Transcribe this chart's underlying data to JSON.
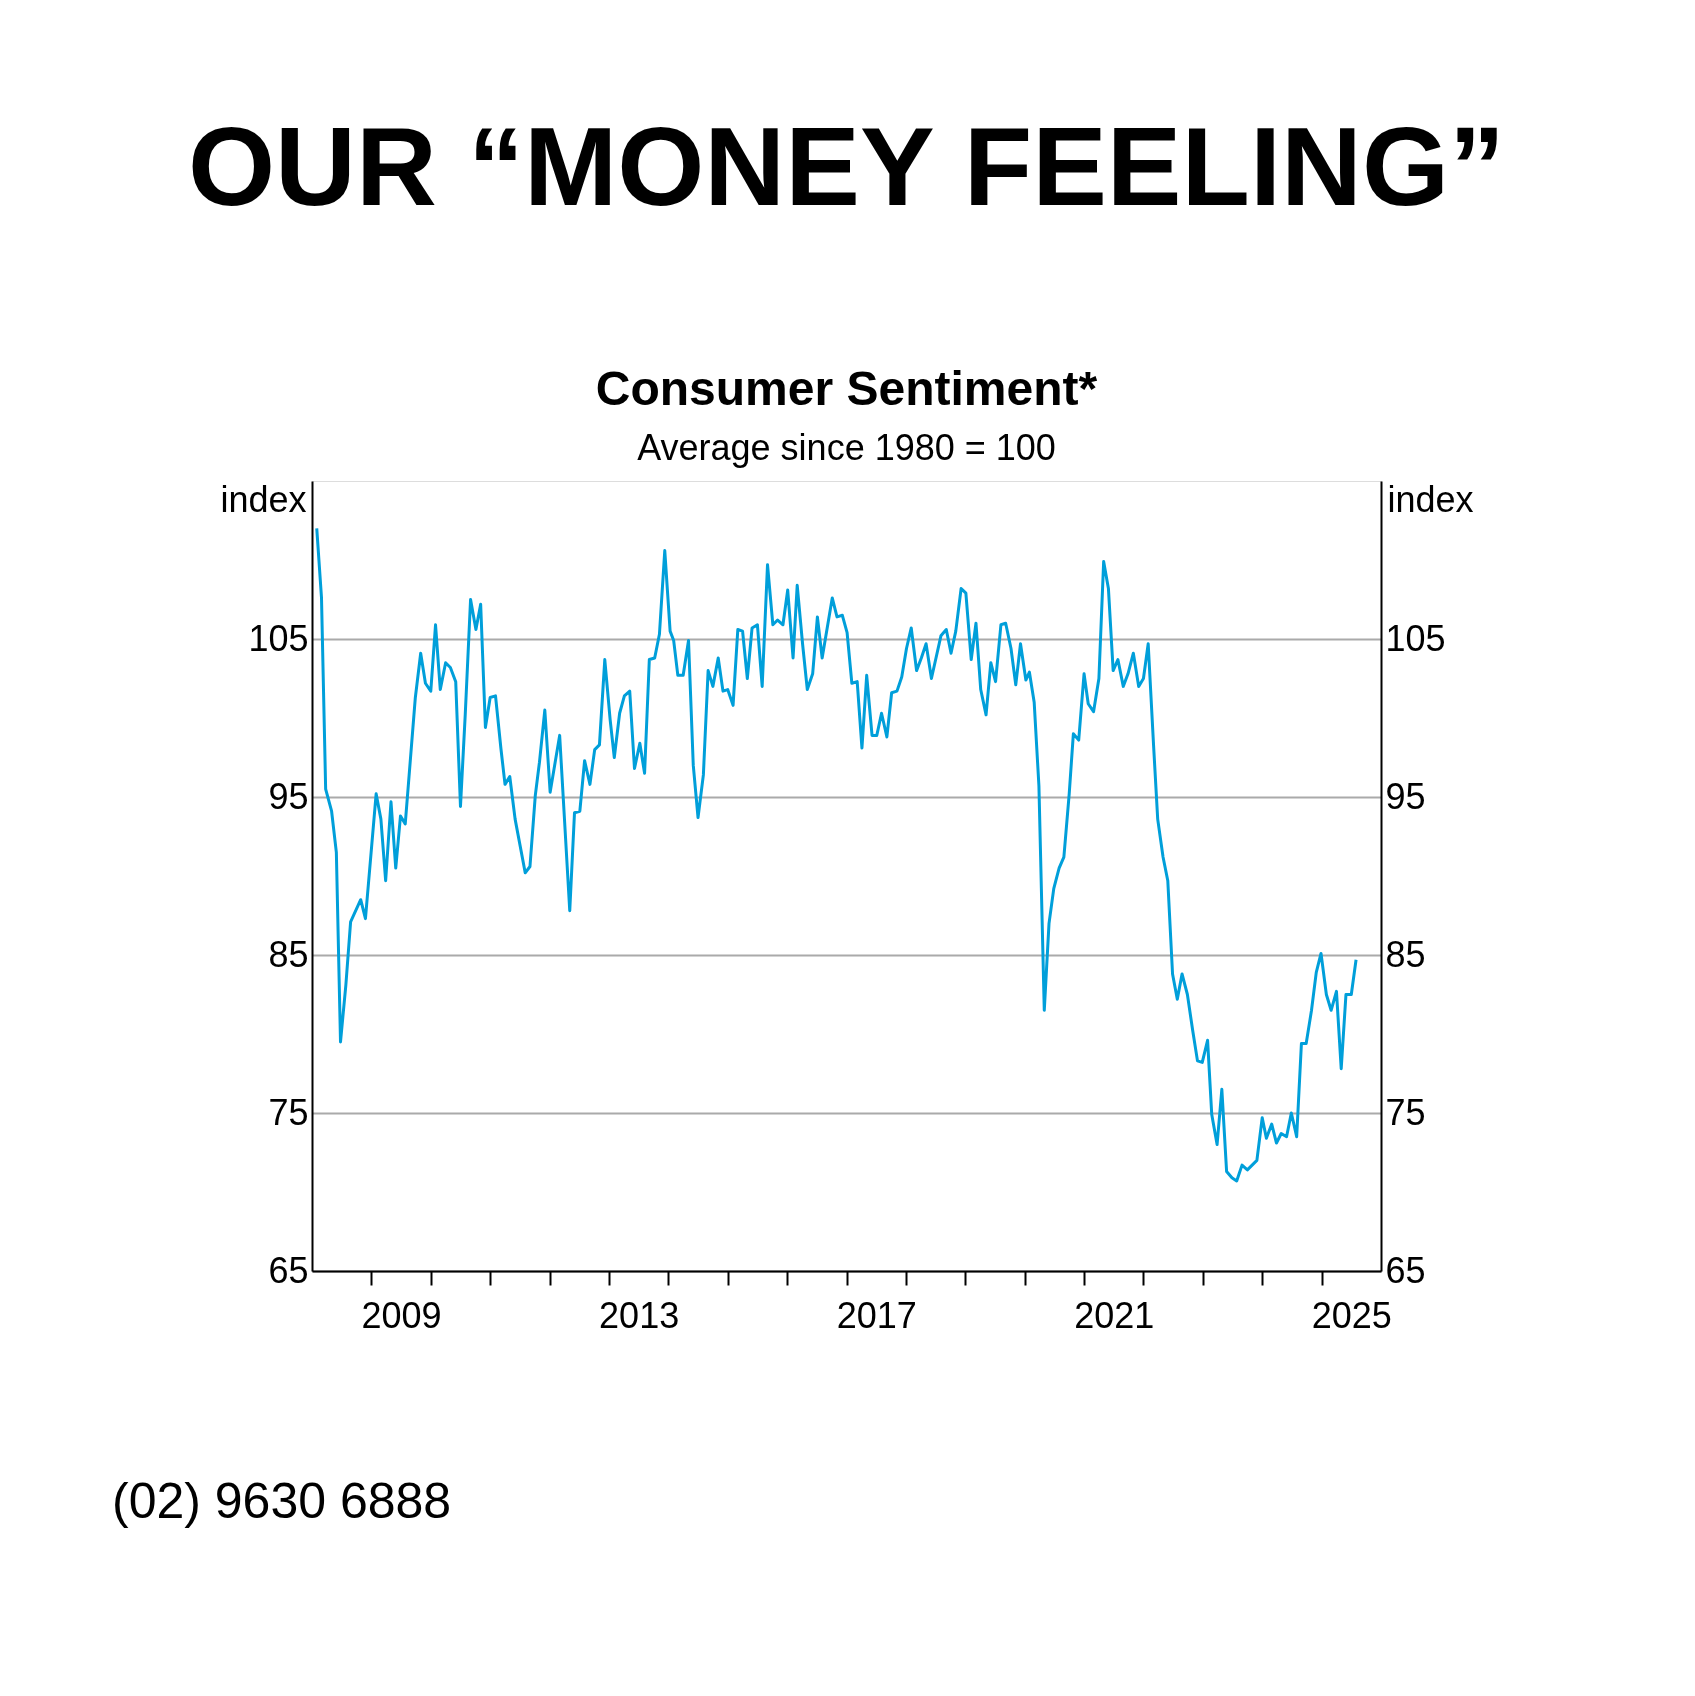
{
  "chart_data": {
    "type": "line",
    "title": "OUR “MONEY FEELING”",
    "subtitle": "Consumer Sentiment*",
    "annotations": [
      "Average since 1980 = 100",
      "(02) 9630 6888"
    ],
    "ylabel": "index",
    "y2label": "index",
    "color": "#009fda",
    "grid": "y",
    "xlim": [
      2008,
      2026
    ],
    "ylim": [
      65,
      115
    ],
    "yticks": [
      65,
      75,
      85,
      95,
      105
    ],
    "y2lim": [
      65,
      115
    ],
    "y2ticks": [
      65,
      75,
      85,
      95,
      105
    ],
    "xticks": [
      {
        "value": 2009,
        "label": null
      },
      {
        "value": 2009.5,
        "label": "2009"
      },
      {
        "value": 2010,
        "label": null
      },
      {
        "value": 2011,
        "label": null
      },
      {
        "value": 2012,
        "label": null
      },
      {
        "value": 2013,
        "label": null
      },
      {
        "value": 2013.5,
        "label": "2013"
      },
      {
        "value": 2014,
        "label": null
      },
      {
        "value": 2015,
        "label": null
      },
      {
        "value": 2016,
        "label": null
      },
      {
        "value": 2017,
        "label": null
      },
      {
        "value": 2017.5,
        "label": "2017"
      },
      {
        "value": 2018,
        "label": null
      },
      {
        "value": 2019,
        "label": null
      },
      {
        "value": 2020,
        "label": null
      },
      {
        "value": 2021,
        "label": null
      },
      {
        "value": 2021.5,
        "label": "2021"
      },
      {
        "value": 2022,
        "label": null
      },
      {
        "value": 2023,
        "label": null
      },
      {
        "value": 2024,
        "label": null
      },
      {
        "value": 2025,
        "label": null
      },
      {
        "value": 2025.5,
        "label": "2025"
      }
    ],
    "x": [
      2008.08,
      2008.16,
      2008.23,
      2008.33,
      2008.41,
      2008.48,
      2008.57,
      2008.65,
      2008.82,
      2008.9,
      2009.08,
      2009.16,
      2009.24,
      2009.33,
      2009.41,
      2009.49,
      2009.57,
      2009.74,
      2009.83,
      2009.91,
      2010.0,
      2010.08,
      2010.16,
      2010.25,
      2010.33,
      2010.42,
      2010.5,
      2010.58,
      2010.67,
      2010.76,
      2010.84,
      2010.92,
      2011.0,
      2011.09,
      2011.18,
      2011.25,
      2011.33,
      2011.42,
      2011.59,
      2011.67,
      2011.76,
      2011.83,
      2011.92,
      2012.01,
      2012.17,
      2012.34,
      2012.42,
      2012.51,
      2012.59,
      2012.68,
      2012.76,
      2012.84,
      2012.93,
      2013.02,
      2013.09,
      2013.18,
      2013.26,
      2013.35,
      2013.43,
      2013.52,
      2013.6,
      2013.68,
      2013.77,
      2013.85,
      2013.94,
      2014.03,
      2014.09,
      2014.16,
      2014.25,
      2014.34,
      2014.42,
      2014.5,
      2014.59,
      2014.67,
      2014.75,
      2014.84,
      2014.92,
      2015.0,
      2015.09,
      2015.17,
      2015.25,
      2015.33,
      2015.41,
      2015.5,
      2015.58,
      2015.67,
      2015.76,
      2015.84,
      2015.93,
      2016.01,
      2016.1,
      2016.17,
      2016.26,
      2016.34,
      2016.43,
      2016.51,
      2016.59,
      2016.76,
      2016.84,
      2016.93,
      2017.01,
      2017.09,
      2017.18,
      2017.26,
      2017.34,
      2017.43,
      2017.51,
      2017.59,
      2017.68,
      2017.76,
      2017.85,
      2017.93,
      2018.01,
      2018.09,
      2018.18,
      2018.26,
      2018.34,
      2018.43,
      2018.59,
      2018.68,
      2018.76,
      2018.84,
      2018.93,
      2019.01,
      2019.1,
      2019.18,
      2019.26,
      2019.35,
      2019.43,
      2019.51,
      2019.6,
      2019.68,
      2019.77,
      2019.85,
      2019.93,
      2020.02,
      2020.08,
      2020.16,
      2020.24,
      2020.33,
      2020.41,
      2020.49,
      2020.58,
      2020.66,
      2020.75,
      2020.82,
      2020.91,
      2021.0,
      2021.07,
      2021.16,
      2021.25,
      2021.33,
      2021.41,
      2021.49,
      2021.57,
      2021.66,
      2021.74,
      2021.83,
      2021.92,
      2022.0,
      2022.08,
      2022.17,
      2022.24,
      2022.33,
      2022.41,
      2022.49,
      2022.57,
      2022.65,
      2022.74,
      2022.83,
      2022.91,
      2022.99,
      2023.08,
      2023.15,
      2023.24,
      2023.32,
      2023.4,
      2023.49,
      2023.57,
      2023.66,
      2023.75,
      2023.91,
      2024.0,
      2024.07,
      2024.16,
      2024.24,
      2024.32,
      2024.41,
      2024.49,
      2024.58,
      2024.66,
      2024.74,
      2024.83,
      2024.91,
      2024.99,
      2025.08,
      2025.16,
      2025.25,
      2025.33,
      2025.41,
      2025.5,
      2025.58
    ],
    "values": [
      112.0,
      107.6,
      95.5,
      94.1,
      91.5,
      79.5,
      83.1,
      87.1,
      88.5,
      87.3,
      95.2,
      93.6,
      89.7,
      94.7,
      90.5,
      93.8,
      93.3,
      101.3,
      104.1,
      102.2,
      101.7,
      105.9,
      101.8,
      103.5,
      103.2,
      102.3,
      94.4,
      100.2,
      107.5,
      105.6,
      107.2,
      99.4,
      101.3,
      101.4,
      98.1,
      95.8,
      96.3,
      93.6,
      90.2,
      90.6,
      95.1,
      97.2,
      100.5,
      95.3,
      98.9,
      87.8,
      94.0,
      94.1,
      97.3,
      95.8,
      98.0,
      98.3,
      103.7,
      99.9,
      97.5,
      100.3,
      101.4,
      101.7,
      96.8,
      98.4,
      96.5,
      103.7,
      103.8,
      105.3,
      110.6,
      105.5,
      104.9,
      102.7,
      102.7,
      104.9,
      97.0,
      93.7,
      96.4,
      103.0,
      102.0,
      103.8,
      101.7,
      101.8,
      100.8,
      105.6,
      105.5,
      102.5,
      105.7,
      105.9,
      102.0,
      109.7,
      105.9,
      106.2,
      105.9,
      108.1,
      103.8,
      108.4,
      104.7,
      101.8,
      102.8,
      106.4,
      103.8,
      107.6,
      106.4,
      106.5,
      105.4,
      102.2,
      102.3,
      98.1,
      102.7,
      98.9,
      98.9,
      100.3,
      98.8,
      101.6,
      101.7,
      102.6,
      104.4,
      105.7,
      103.0,
      103.8,
      104.7,
      102.5,
      105.2,
      105.6,
      104.1,
      105.5,
      108.2,
      107.9,
      103.7,
      106.0,
      101.8,
      100.2,
      103.5,
      102.3,
      105.9,
      106.0,
      104.4,
      102.1,
      104.7,
      102.4,
      102.9,
      101.0,
      95.7,
      81.5,
      87.0,
      89.2,
      90.5,
      91.2,
      95.2,
      99.0,
      98.6,
      102.8,
      100.9,
      100.4,
      102.5,
      109.9,
      108.2,
      103.0,
      103.7,
      102.0,
      102.8,
      104.1,
      102.0,
      102.5,
      104.7,
      98.3,
      93.6,
      91.2,
      89.7,
      83.8,
      82.2,
      83.8,
      82.5,
      80.2,
      78.3,
      78.2,
      79.6,
      74.9,
      73.0,
      76.5,
      71.3,
      70.9,
      70.7,
      71.7,
      71.4,
      72.0,
      74.7,
      73.4,
      74.3,
      73.1,
      73.7,
      73.5,
      75.0,
      73.5,
      79.4,
      79.4,
      81.5,
      83.9,
      85.1,
      82.5,
      81.5,
      82.7,
      77.8,
      82.5,
      82.5,
      84.7
    ]
  }
}
